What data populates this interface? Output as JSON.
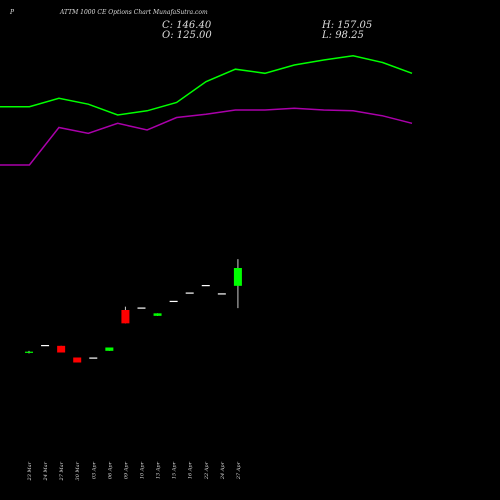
{
  "header": {
    "symbol": "P",
    "title": "ATTM 1000  CE Options  Chart MunafaSutra.com",
    "close_text": "C: 146.40",
    "open_text": "O: 125.00",
    "high_text": "H: 157.05",
    "low_text": "L: 98.25"
  },
  "colors": {
    "background": "#000000",
    "up": "#00ff00",
    "down": "#ff0000",
    "upper_band": "#00ff00",
    "lower_band": "#aa00aa",
    "text": "#dddddd"
  },
  "chart_data": {
    "type": "candlestick",
    "categories": [
      "23 Mar",
      "24 Mar",
      "27 Mar",
      "30 Mar",
      "03 Apr",
      "06 Apr",
      "09 Apr",
      "10 Apr",
      "13 Apr",
      "15 Apr",
      "16 Apr",
      "22 Apr",
      "24 Apr",
      "27 Apr"
    ],
    "candles": [
      {
        "o": 45,
        "h": 47,
        "l": 44,
        "c": 46,
        "dir": "up"
      },
      {
        "o": 54,
        "h": 54,
        "l": 54,
        "c": 54,
        "dir": "flat"
      },
      {
        "o": 53,
        "h": 53,
        "l": 45,
        "c": 45,
        "dir": "down"
      },
      {
        "o": 39,
        "h": 39,
        "l": 33,
        "c": 33,
        "dir": "down"
      },
      {
        "o": 39,
        "h": 39,
        "l": 39,
        "c": 39,
        "dir": "flat"
      },
      {
        "o": 47,
        "h": 51,
        "l": 47,
        "c": 51,
        "dir": "up"
      },
      {
        "o": 96,
        "h": 100,
        "l": 80,
        "c": 80,
        "dir": "down"
      },
      {
        "o": 99,
        "h": 99,
        "l": 99,
        "c": 99,
        "dir": "flat"
      },
      {
        "o": 89,
        "h": 92,
        "l": 89,
        "c": 92,
        "dir": "up"
      },
      {
        "o": 107,
        "h": 107,
        "l": 107,
        "c": 107,
        "dir": "flat"
      },
      {
        "o": 117,
        "h": 117,
        "l": 117,
        "c": 117,
        "dir": "flat"
      },
      {
        "o": 126,
        "h": 126,
        "l": 126,
        "c": 126,
        "dir": "flat"
      },
      {
        "o": 116,
        "h": 116,
        "l": 116,
        "c": 116,
        "dir": "flat"
      },
      {
        "o": 125,
        "h": 157.05,
        "l": 98.25,
        "c": 146.4,
        "dir": "up"
      }
    ],
    "upper_band": [
      340,
      340,
      350,
      343,
      330,
      335,
      345,
      370,
      385,
      380,
      390,
      396,
      401,
      393,
      380
    ],
    "lower_band": [
      270,
      270,
      315,
      308,
      320,
      312,
      327,
      331,
      336,
      336,
      338,
      336,
      335,
      329,
      320
    ],
    "ylim": [
      -60,
      420
    ]
  }
}
